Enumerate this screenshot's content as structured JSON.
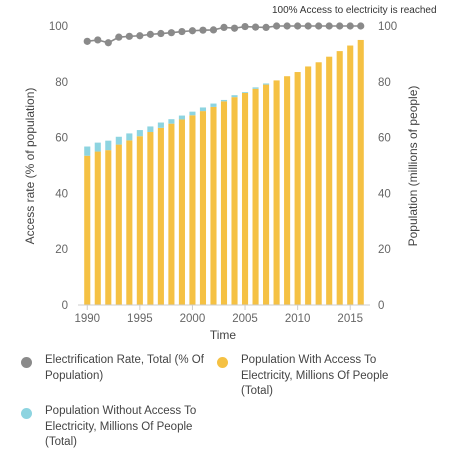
{
  "chart_data": {
    "type": "bar",
    "title": "",
    "xlabel": "Time",
    "ylabel_left": "Access rate (% of population)",
    "ylabel_right": "Population (millions of people)",
    "x": [
      1990,
      1991,
      1992,
      1993,
      1994,
      1995,
      1996,
      1997,
      1998,
      1999,
      2000,
      2001,
      2002,
      2003,
      2004,
      2005,
      2006,
      2007,
      2008,
      2009,
      2010,
      2011,
      2012,
      2013,
      2014,
      2015,
      2016
    ],
    "x_ticks": [
      "1990",
      "1995",
      "2000",
      "2005",
      "2010",
      "2015"
    ],
    "y_ticks_left": [
      "0",
      "20",
      "40",
      "60",
      "80",
      "100"
    ],
    "y_ticks_right": [
      "0",
      "20",
      "40",
      "60",
      "80",
      "100"
    ],
    "ylim_left": [
      0,
      100
    ],
    "ylim_right": [
      0,
      100
    ],
    "grid": false,
    "legend_position": "bottom",
    "annotation": "100% Access to electricity is reached",
    "series": [
      {
        "name": "Electrification Rate, Total (% Of Population)",
        "type": "line-markers",
        "axis": "left",
        "color": "#8a8a8a",
        "values": [
          94.5,
          95,
          94,
          96,
          96.3,
          96.5,
          97,
          97.3,
          97.6,
          98,
          98.3,
          98.5,
          98.6,
          99.5,
          99.2,
          99.8,
          99.6,
          99.5,
          100,
          100,
          100,
          100,
          100,
          100,
          100,
          100,
          100
        ]
      },
      {
        "name": "Population With Access To Electricity, Millions Of People (Total)",
        "type": "stacked-bar",
        "axis": "right",
        "color": "#f5c143",
        "values": [
          53.5,
          55.0,
          55.5,
          57.5,
          59.0,
          60.5,
          62.0,
          63.5,
          65.0,
          66.5,
          68.0,
          69.5,
          71.0,
          73.0,
          74.5,
          76.0,
          77.5,
          79.0,
          80.5,
          82.0,
          83.5,
          85.5,
          87.0,
          89.0,
          91.0,
          93.0,
          95.0
        ]
      },
      {
        "name": "Population Without Access To Electricity, Millions Of People (Total)",
        "type": "stacked-bar",
        "axis": "right",
        "color": "#8dd4e0",
        "values": [
          3.3,
          3.2,
          3.4,
          2.8,
          2.5,
          2.2,
          2.0,
          1.9,
          1.6,
          1.4,
          1.3,
          1.3,
          1.2,
          0.5,
          0.7,
          0.3,
          0.5,
          0.4,
          0,
          0,
          0,
          0,
          0,
          0,
          0,
          0,
          0
        ]
      }
    ]
  },
  "legend": {
    "items": [
      {
        "label": "Electrification Rate, Total (% Of Population)",
        "color": "#8a8a8a"
      },
      {
        "label": "Population With Access To Electricity, Millions Of People (Total)",
        "color": "#f5c143"
      },
      {
        "label": "Population Without Access To Electricity, Millions Of People (Total)",
        "color": "#8dd4e0"
      }
    ]
  }
}
